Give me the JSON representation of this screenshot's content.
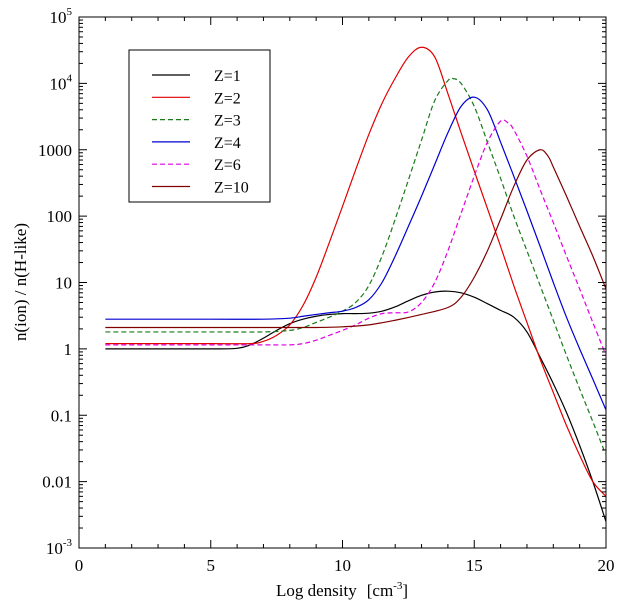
{
  "chart_data": {
    "type": "line",
    "title": "",
    "xlabel": "Log density",
    "xlabel_unit": "[cm⁻³]",
    "ylabel": "n(ion) / n(H-like)",
    "xlim": [
      0,
      20
    ],
    "ylim_log10": [
      -3,
      5
    ],
    "yscale": "log",
    "grid": false,
    "legend_position": "top-left",
    "x_ticks": [
      {
        "value": 0,
        "label": "0"
      },
      {
        "value": 5,
        "label": "5"
      },
      {
        "value": 10,
        "label": "10"
      },
      {
        "value": 15,
        "label": "15"
      },
      {
        "value": 20,
        "label": "20"
      }
    ],
    "y_ticks": [
      {
        "exp": -3,
        "label": "10",
        "sup": "-3"
      },
      {
        "exp": -2,
        "label": "0.01",
        "sup": ""
      },
      {
        "exp": -1,
        "label": "0.1",
        "sup": ""
      },
      {
        "exp": 0,
        "label": "1",
        "sup": ""
      },
      {
        "exp": 1,
        "label": "10",
        "sup": ""
      },
      {
        "exp": 2,
        "label": "100",
        "sup": ""
      },
      {
        "exp": 3,
        "label": "1000",
        "sup": ""
      },
      {
        "exp": 4,
        "label": "10",
        "sup": "4"
      },
      {
        "exp": 5,
        "label": "10",
        "sup": "5"
      }
    ],
    "series": [
      {
        "name": "Z=1",
        "color": "#000000",
        "dash": "",
        "points": [
          [
            1,
            1.0
          ],
          [
            3,
            1.0
          ],
          [
            5,
            1.0
          ],
          [
            6,
            1.02
          ],
          [
            6.5,
            1.15
          ],
          [
            7,
            1.45
          ],
          [
            7.5,
            1.9
          ],
          [
            8,
            2.4
          ],
          [
            8.5,
            2.8
          ],
          [
            9,
            3.1
          ],
          [
            9.5,
            3.3
          ],
          [
            10,
            3.4
          ],
          [
            10.5,
            3.4
          ],
          [
            11,
            3.45
          ],
          [
            11.5,
            3.7
          ],
          [
            12,
            4.3
          ],
          [
            12.5,
            5.3
          ],
          [
            13,
            6.4
          ],
          [
            13.5,
            7.2
          ],
          [
            14,
            7.4
          ],
          [
            14.5,
            7.0
          ],
          [
            15,
            6.0
          ],
          [
            15.5,
            4.8
          ],
          [
            16,
            3.8
          ],
          [
            16.5,
            3.0
          ],
          [
            17,
            1.8
          ],
          [
            17.5,
            0.75
          ],
          [
            18,
            0.3
          ],
          [
            18.5,
            0.11
          ],
          [
            19,
            0.035
          ],
          [
            19.5,
            0.01
          ],
          [
            20,
            0.0025
          ]
        ]
      },
      {
        "name": "Z=2",
        "color": "#e00000",
        "dash": "",
        "points": [
          [
            1,
            1.2
          ],
          [
            5,
            1.2
          ],
          [
            6.5,
            1.2
          ],
          [
            7,
            1.3
          ],
          [
            7.5,
            1.6
          ],
          [
            8,
            2.3
          ],
          [
            8.5,
            4.5
          ],
          [
            9,
            12
          ],
          [
            9.5,
            40
          ],
          [
            10,
            140
          ],
          [
            10.5,
            500
          ],
          [
            11,
            1700
          ],
          [
            11.5,
            5000
          ],
          [
            12,
            12000
          ],
          [
            12.5,
            25000
          ],
          [
            13,
            35000
          ],
          [
            13.5,
            25000
          ],
          [
            14,
            7000
          ],
          [
            14.5,
            1800
          ],
          [
            15,
            480
          ],
          [
            15.5,
            130
          ],
          [
            16,
            35
          ],
          [
            16.5,
            9
          ],
          [
            17,
            2.5
          ],
          [
            17.5,
            0.7
          ],
          [
            18,
            0.22
          ],
          [
            18.5,
            0.07
          ],
          [
            19,
            0.025
          ],
          [
            19.5,
            0.01
          ],
          [
            20,
            0.006
          ]
        ]
      },
      {
        "name": "Z=3",
        "color": "#1a7a1a",
        "dash": "5,3",
        "points": [
          [
            1,
            1.8
          ],
          [
            5,
            1.8
          ],
          [
            7,
            1.8
          ],
          [
            8,
            1.9
          ],
          [
            8.5,
            2.1
          ],
          [
            9,
            2.5
          ],
          [
            9.5,
            3.0
          ],
          [
            10,
            3.7
          ],
          [
            10.5,
            5.0
          ],
          [
            11,
            9
          ],
          [
            11.5,
            25
          ],
          [
            12,
            90
          ],
          [
            12.5,
            350
          ],
          [
            13,
            1400
          ],
          [
            13.5,
            5500
          ],
          [
            14,
            11000
          ],
          [
            14.2,
            11800
          ],
          [
            14.5,
            10000
          ],
          [
            15,
            4500
          ],
          [
            15.5,
            1300
          ],
          [
            16,
            370
          ],
          [
            16.5,
            100
          ],
          [
            17,
            30
          ],
          [
            17.5,
            9
          ],
          [
            18,
            2.7
          ],
          [
            18.5,
            0.8
          ],
          [
            19,
            0.25
          ],
          [
            19.5,
            0.08
          ],
          [
            20,
            0.025
          ]
        ]
      },
      {
        "name": "Z=4",
        "color": "#0000d0",
        "dash": "",
        "points": [
          [
            1,
            2.8
          ],
          [
            5,
            2.8
          ],
          [
            7,
            2.8
          ],
          [
            8,
            2.9
          ],
          [
            8.5,
            3.1
          ],
          [
            9,
            3.3
          ],
          [
            9.5,
            3.5
          ],
          [
            10,
            3.7
          ],
          [
            10.5,
            4.2
          ],
          [
            11,
            5.5
          ],
          [
            11.5,
            10
          ],
          [
            12,
            25
          ],
          [
            12.5,
            70
          ],
          [
            13,
            200
          ],
          [
            13.5,
            600
          ],
          [
            14,
            1800
          ],
          [
            14.5,
            4500
          ],
          [
            15,
            6200
          ],
          [
            15.5,
            4000
          ],
          [
            16,
            1300
          ],
          [
            16.5,
            400
          ],
          [
            17,
            120
          ],
          [
            17.5,
            35
          ],
          [
            18,
            10
          ],
          [
            18.5,
            3
          ],
          [
            19,
            1
          ],
          [
            19.5,
            0.35
          ],
          [
            20,
            0.12
          ]
        ]
      },
      {
        "name": "Z=6",
        "color": "#e000e0",
        "dash": "5,3",
        "points": [
          [
            1,
            1.15
          ],
          [
            5,
            1.15
          ],
          [
            7,
            1.15
          ],
          [
            8,
            1.15
          ],
          [
            8.5,
            1.2
          ],
          [
            9,
            1.35
          ],
          [
            9.5,
            1.6
          ],
          [
            10,
            1.9
          ],
          [
            10.5,
            2.3
          ],
          [
            11,
            2.9
          ],
          [
            11.5,
            3.4
          ],
          [
            12,
            3.5
          ],
          [
            12.5,
            3.6
          ],
          [
            13,
            5
          ],
          [
            13.5,
            10
          ],
          [
            14,
            30
          ],
          [
            14.5,
            110
          ],
          [
            15,
            400
          ],
          [
            15.5,
            1300
          ],
          [
            16,
            2700
          ],
          [
            16.3,
            2500
          ],
          [
            16.5,
            2000
          ],
          [
            17,
            800
          ],
          [
            17.5,
            250
          ],
          [
            18,
            80
          ],
          [
            18.5,
            25
          ],
          [
            19,
            8
          ],
          [
            19.5,
            2.5
          ],
          [
            20,
            0.8
          ]
        ]
      },
      {
        "name": "Z=10",
        "color": "#800000",
        "dash": "",
        "points": [
          [
            1,
            2.1
          ],
          [
            5,
            2.1
          ],
          [
            7,
            2.1
          ],
          [
            8,
            2.1
          ],
          [
            9,
            2.1
          ],
          [
            10,
            2.15
          ],
          [
            11,
            2.3
          ],
          [
            12,
            2.7
          ],
          [
            13,
            3.3
          ],
          [
            14,
            4.2
          ],
          [
            14.5,
            6
          ],
          [
            15,
            12
          ],
          [
            15.5,
            30
          ],
          [
            16,
            90
          ],
          [
            16.5,
            280
          ],
          [
            17,
            700
          ],
          [
            17.5,
            1000
          ],
          [
            17.8,
            800
          ],
          [
            18,
            550
          ],
          [
            18.5,
            200
          ],
          [
            19,
            70
          ],
          [
            19.5,
            25
          ],
          [
            20,
            8
          ]
        ]
      }
    ]
  }
}
